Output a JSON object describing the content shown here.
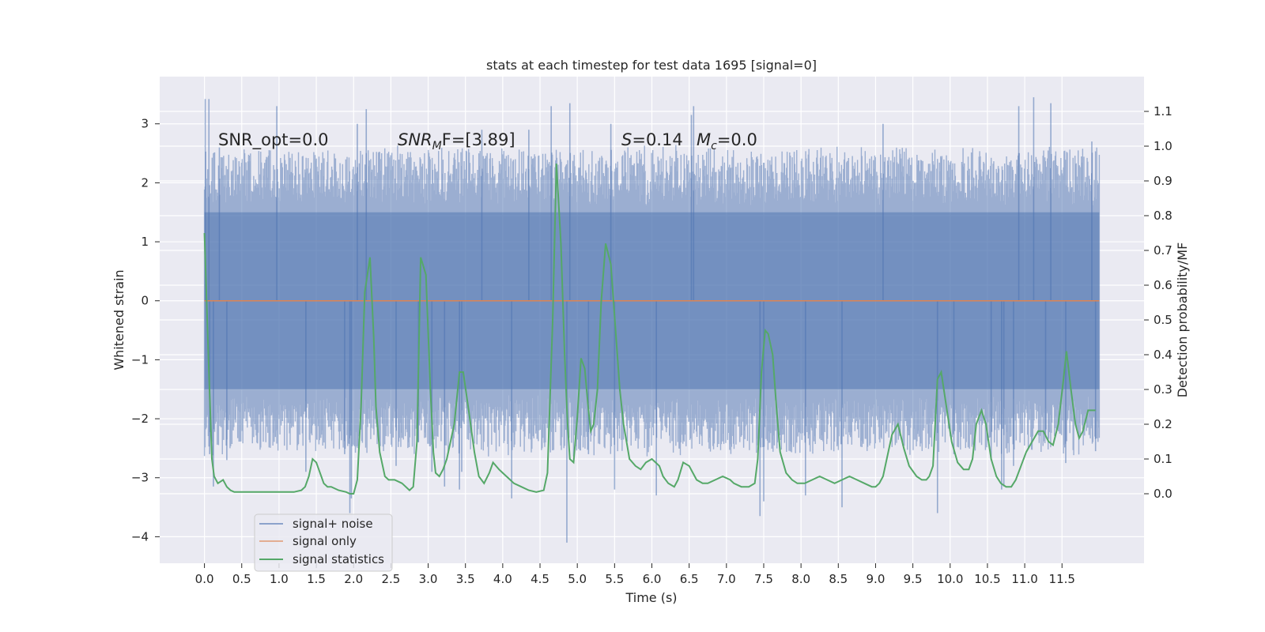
{
  "chart_data": {
    "type": "line",
    "title": "stats at each timestep for test data 1695 [signal=0]",
    "xlabel": "Time (s)",
    "ylabel_left": "Whitened strain",
    "ylabel_right": "Detection probability/MF",
    "xlim": [
      -0.6,
      12.6
    ],
    "ylim_left": [
      -4.45,
      3.8
    ],
    "ylim_right": [
      -0.2,
      1.2
    ],
    "x_ticks": [
      "0.0",
      "0.5",
      "1.0",
      "1.5",
      "2.0",
      "2.5",
      "3.0",
      "3.5",
      "4.0",
      "4.5",
      "5.0",
      "5.5",
      "6.0",
      "6.5",
      "7.0",
      "7.5",
      "8.0",
      "8.5",
      "9.0",
      "9.5",
      "10.0",
      "10.5",
      "11.0",
      "11.5"
    ],
    "y_ticks_left": [
      "−4",
      "−3",
      "−2",
      "−1",
      "0",
      "1",
      "2",
      "3"
    ],
    "y_ticks_right": [
      "0.0",
      "0.1",
      "0.2",
      "0.3",
      "0.4",
      "0.5",
      "0.6",
      "0.7",
      "0.8",
      "0.9",
      "1.0",
      "1.1"
    ],
    "grid": true,
    "legend_position": "lower-left",
    "colors": {
      "background": "#eaeaf2",
      "grid": "#ffffff",
      "signal_noise": "#4c72b0",
      "signal_only": "#dd8452",
      "signal_statistics": "#55a868"
    },
    "annotations": {
      "snr_opt": "SNR_opt=0.0",
      "snr_mf_prefix": "SNR",
      "snr_mf_sub": "M",
      "snr_mf_suffix": "F=[3.89]",
      "s_prefix": "S",
      "s_value": "=0.14",
      "mc_prefix": "M",
      "mc_sub": "c",
      "mc_value": "=0.0"
    },
    "series": [
      {
        "name": "signal+ noise",
        "axis": "left",
        "style": "dense noise",
        "x_range": [
          0.0,
          12.0
        ],
        "core_range": [
          -1.5,
          1.5
        ],
        "typical_envelope": [
          -2.5,
          2.5
        ],
        "min": -4.1,
        "max": 3.45,
        "spikes": [
          {
            "x": 0.01,
            "y": 3.42
          },
          {
            "x": 0.06,
            "y": 3.42
          },
          {
            "x": 0.07,
            "y": -2.6
          },
          {
            "x": 0.12,
            "y": -3.15
          },
          {
            "x": 0.2,
            "y": 2.6
          },
          {
            "x": 0.3,
            "y": -2.7
          },
          {
            "x": 0.97,
            "y": 3.3
          },
          {
            "x": 1.36,
            "y": -2.9
          },
          {
            "x": 1.88,
            "y": -2.6
          },
          {
            "x": 1.95,
            "y": -3.6
          },
          {
            "x": 1.97,
            "y": -3.35
          },
          {
            "x": 2.05,
            "y": 3.0
          },
          {
            "x": 2.17,
            "y": 3.25
          },
          {
            "x": 2.57,
            "y": -2.8
          },
          {
            "x": 2.87,
            "y": -2.4
          },
          {
            "x": 3.05,
            "y": -2.9
          },
          {
            "x": 3.22,
            "y": -3.15
          },
          {
            "x": 3.42,
            "y": -3.2
          },
          {
            "x": 3.45,
            "y": -2.9
          },
          {
            "x": 3.72,
            "y": 2.9
          },
          {
            "x": 4.12,
            "y": -3.35
          },
          {
            "x": 4.35,
            "y": 2.9
          },
          {
            "x": 4.86,
            "y": -4.1
          },
          {
            "x": 4.9,
            "y": 3.35
          },
          {
            "x": 4.65,
            "y": 3.3
          },
          {
            "x": 5.15,
            "y": -2.6
          },
          {
            "x": 5.45,
            "y": 3.0
          },
          {
            "x": 5.5,
            "y": -3.2
          },
          {
            "x": 6.06,
            "y": -3.3
          },
          {
            "x": 6.53,
            "y": 3.15
          },
          {
            "x": 6.56,
            "y": 3.3
          },
          {
            "x": 7.45,
            "y": -3.65
          },
          {
            "x": 7.5,
            "y": -3.4
          },
          {
            "x": 8.06,
            "y": -3.3
          },
          {
            "x": 8.55,
            "y": -3.5
          },
          {
            "x": 9.1,
            "y": 3.0
          },
          {
            "x": 9.83,
            "y": -3.6
          },
          {
            "x": 10.05,
            "y": -2.6
          },
          {
            "x": 10.55,
            "y": -2.7
          },
          {
            "x": 10.69,
            "y": -3.2
          },
          {
            "x": 10.72,
            "y": -3.15
          },
          {
            "x": 10.85,
            "y": -2.8
          },
          {
            "x": 10.92,
            "y": 3.3
          },
          {
            "x": 11.12,
            "y": 3.45
          },
          {
            "x": 11.28,
            "y": -2.3
          },
          {
            "x": 11.35,
            "y": 3.35
          },
          {
            "x": 11.55,
            "y": -2.75
          },
          {
            "x": 11.9,
            "y": 2.7
          },
          {
            "x": 11.95,
            "y": -2.55
          }
        ]
      },
      {
        "name": "signal only",
        "axis": "left",
        "x": [
          0.0,
          12.0
        ],
        "y": [
          0.0,
          0.0
        ]
      },
      {
        "name": "signal statistics",
        "axis": "right",
        "x": [
          0.0,
          0.03,
          0.06,
          0.1,
          0.13,
          0.18,
          0.25,
          0.3,
          0.35,
          0.4,
          0.45,
          0.5,
          0.6,
          0.7,
          0.8,
          0.9,
          1.0,
          1.1,
          1.2,
          1.3,
          1.35,
          1.4,
          1.45,
          1.5,
          1.55,
          1.6,
          1.65,
          1.7,
          1.8,
          1.9,
          1.95,
          2.0,
          2.05,
          2.1,
          2.15,
          2.22,
          2.27,
          2.3,
          2.35,
          2.42,
          2.47,
          2.55,
          2.65,
          2.75,
          2.8,
          2.85,
          2.9,
          2.97,
          3.03,
          3.07,
          3.1,
          3.15,
          3.2,
          3.25,
          3.35,
          3.42,
          3.47,
          3.55,
          3.62,
          3.68,
          3.75,
          3.82,
          3.87,
          3.95,
          4.0,
          4.05,
          4.1,
          4.15,
          4.25,
          4.35,
          4.45,
          4.55,
          4.6,
          4.67,
          4.72,
          4.78,
          4.83,
          4.87,
          4.9,
          4.95,
          5.0,
          5.05,
          5.1,
          5.15,
          5.18,
          5.22,
          5.27,
          5.32,
          5.38,
          5.45,
          5.52,
          5.57,
          5.62,
          5.7,
          5.78,
          5.85,
          5.92,
          6.0,
          6.1,
          6.15,
          6.22,
          6.3,
          6.35,
          6.42,
          6.5,
          6.55,
          6.6,
          6.68,
          6.75,
          6.85,
          6.95,
          7.05,
          7.1,
          7.2,
          7.3,
          7.38,
          7.42,
          7.47,
          7.52,
          7.56,
          7.62,
          7.67,
          7.72,
          7.8,
          7.88,
          7.95,
          8.05,
          8.15,
          8.25,
          8.35,
          8.45,
          8.55,
          8.65,
          8.75,
          8.85,
          8.95,
          9.0,
          9.05,
          9.1,
          9.15,
          9.22,
          9.3,
          9.38,
          9.45,
          9.55,
          9.62,
          9.68,
          9.72,
          9.77,
          9.83,
          9.88,
          9.95,
          10.02,
          10.1,
          10.18,
          10.25,
          10.3,
          10.35,
          10.42,
          10.48,
          10.55,
          10.62,
          10.68,
          10.75,
          10.82,
          10.88,
          10.95,
          11.02,
          11.1,
          11.18,
          11.25,
          11.32,
          11.38,
          11.45,
          11.52,
          11.56,
          11.62,
          11.68,
          11.73,
          11.78,
          11.85,
          11.92,
          11.95
        ],
        "y": [
          0.75,
          0.55,
          0.35,
          0.1,
          0.05,
          0.03,
          0.04,
          0.02,
          0.01,
          0.005,
          0.005,
          0.005,
          0.005,
          0.005,
          0.005,
          0.005,
          0.005,
          0.005,
          0.005,
          0.01,
          0.02,
          0.05,
          0.1,
          0.09,
          0.06,
          0.03,
          0.02,
          0.02,
          0.01,
          0.005,
          0.0,
          0.0,
          0.04,
          0.25,
          0.58,
          0.68,
          0.45,
          0.25,
          0.12,
          0.05,
          0.04,
          0.04,
          0.03,
          0.01,
          0.02,
          0.15,
          0.68,
          0.63,
          0.3,
          0.12,
          0.06,
          0.05,
          0.07,
          0.1,
          0.2,
          0.35,
          0.35,
          0.23,
          0.12,
          0.05,
          0.03,
          0.06,
          0.09,
          0.07,
          0.06,
          0.05,
          0.04,
          0.03,
          0.02,
          0.01,
          0.005,
          0.01,
          0.06,
          0.5,
          0.95,
          0.72,
          0.4,
          0.2,
          0.1,
          0.09,
          0.22,
          0.39,
          0.36,
          0.24,
          0.18,
          0.2,
          0.3,
          0.55,
          0.72,
          0.66,
          0.45,
          0.3,
          0.2,
          0.1,
          0.08,
          0.07,
          0.09,
          0.1,
          0.08,
          0.05,
          0.03,
          0.02,
          0.04,
          0.09,
          0.08,
          0.06,
          0.04,
          0.03,
          0.03,
          0.04,
          0.05,
          0.04,
          0.03,
          0.02,
          0.02,
          0.03,
          0.1,
          0.35,
          0.47,
          0.46,
          0.4,
          0.25,
          0.12,
          0.06,
          0.04,
          0.03,
          0.03,
          0.04,
          0.05,
          0.04,
          0.03,
          0.04,
          0.05,
          0.04,
          0.03,
          0.02,
          0.02,
          0.03,
          0.05,
          0.1,
          0.17,
          0.2,
          0.13,
          0.08,
          0.05,
          0.04,
          0.04,
          0.05,
          0.08,
          0.33,
          0.35,
          0.25,
          0.15,
          0.09,
          0.07,
          0.07,
          0.1,
          0.2,
          0.24,
          0.2,
          0.1,
          0.05,
          0.03,
          0.02,
          0.02,
          0.04,
          0.08,
          0.12,
          0.15,
          0.18,
          0.18,
          0.15,
          0.14,
          0.2,
          0.33,
          0.41,
          0.3,
          0.2,
          0.16,
          0.18,
          0.24,
          0.24,
          0.24
        ]
      }
    ]
  }
}
